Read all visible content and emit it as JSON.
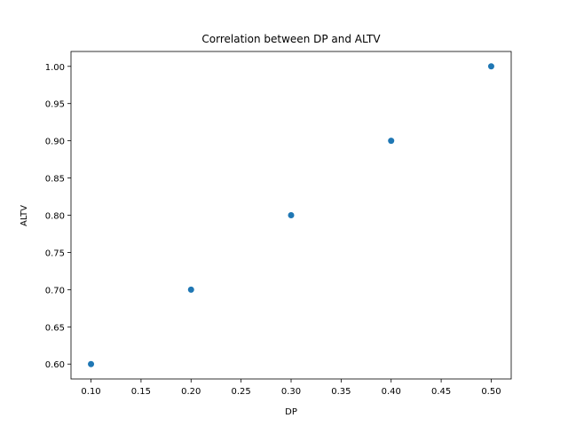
{
  "chart_data": {
    "type": "scatter",
    "title": "Correlation between DP and ALTV",
    "xlabel": "DP",
    "ylabel": "ALTV",
    "x": [
      0.1,
      0.2,
      0.3,
      0.4,
      0.5
    ],
    "y": [
      0.6,
      0.7,
      0.8,
      0.9,
      1.0
    ],
    "xlim": [
      0.08,
      0.52
    ],
    "ylim": [
      0.58,
      1.02
    ],
    "xticks": [
      "0.10",
      "0.15",
      "0.20",
      "0.25",
      "0.30",
      "0.35",
      "0.40",
      "0.45",
      "0.50"
    ],
    "yticks": [
      "0.60",
      "0.65",
      "0.70",
      "0.75",
      "0.80",
      "0.85",
      "0.90",
      "0.95",
      "1.00"
    ],
    "grid": false,
    "color": "#1f77b4"
  }
}
